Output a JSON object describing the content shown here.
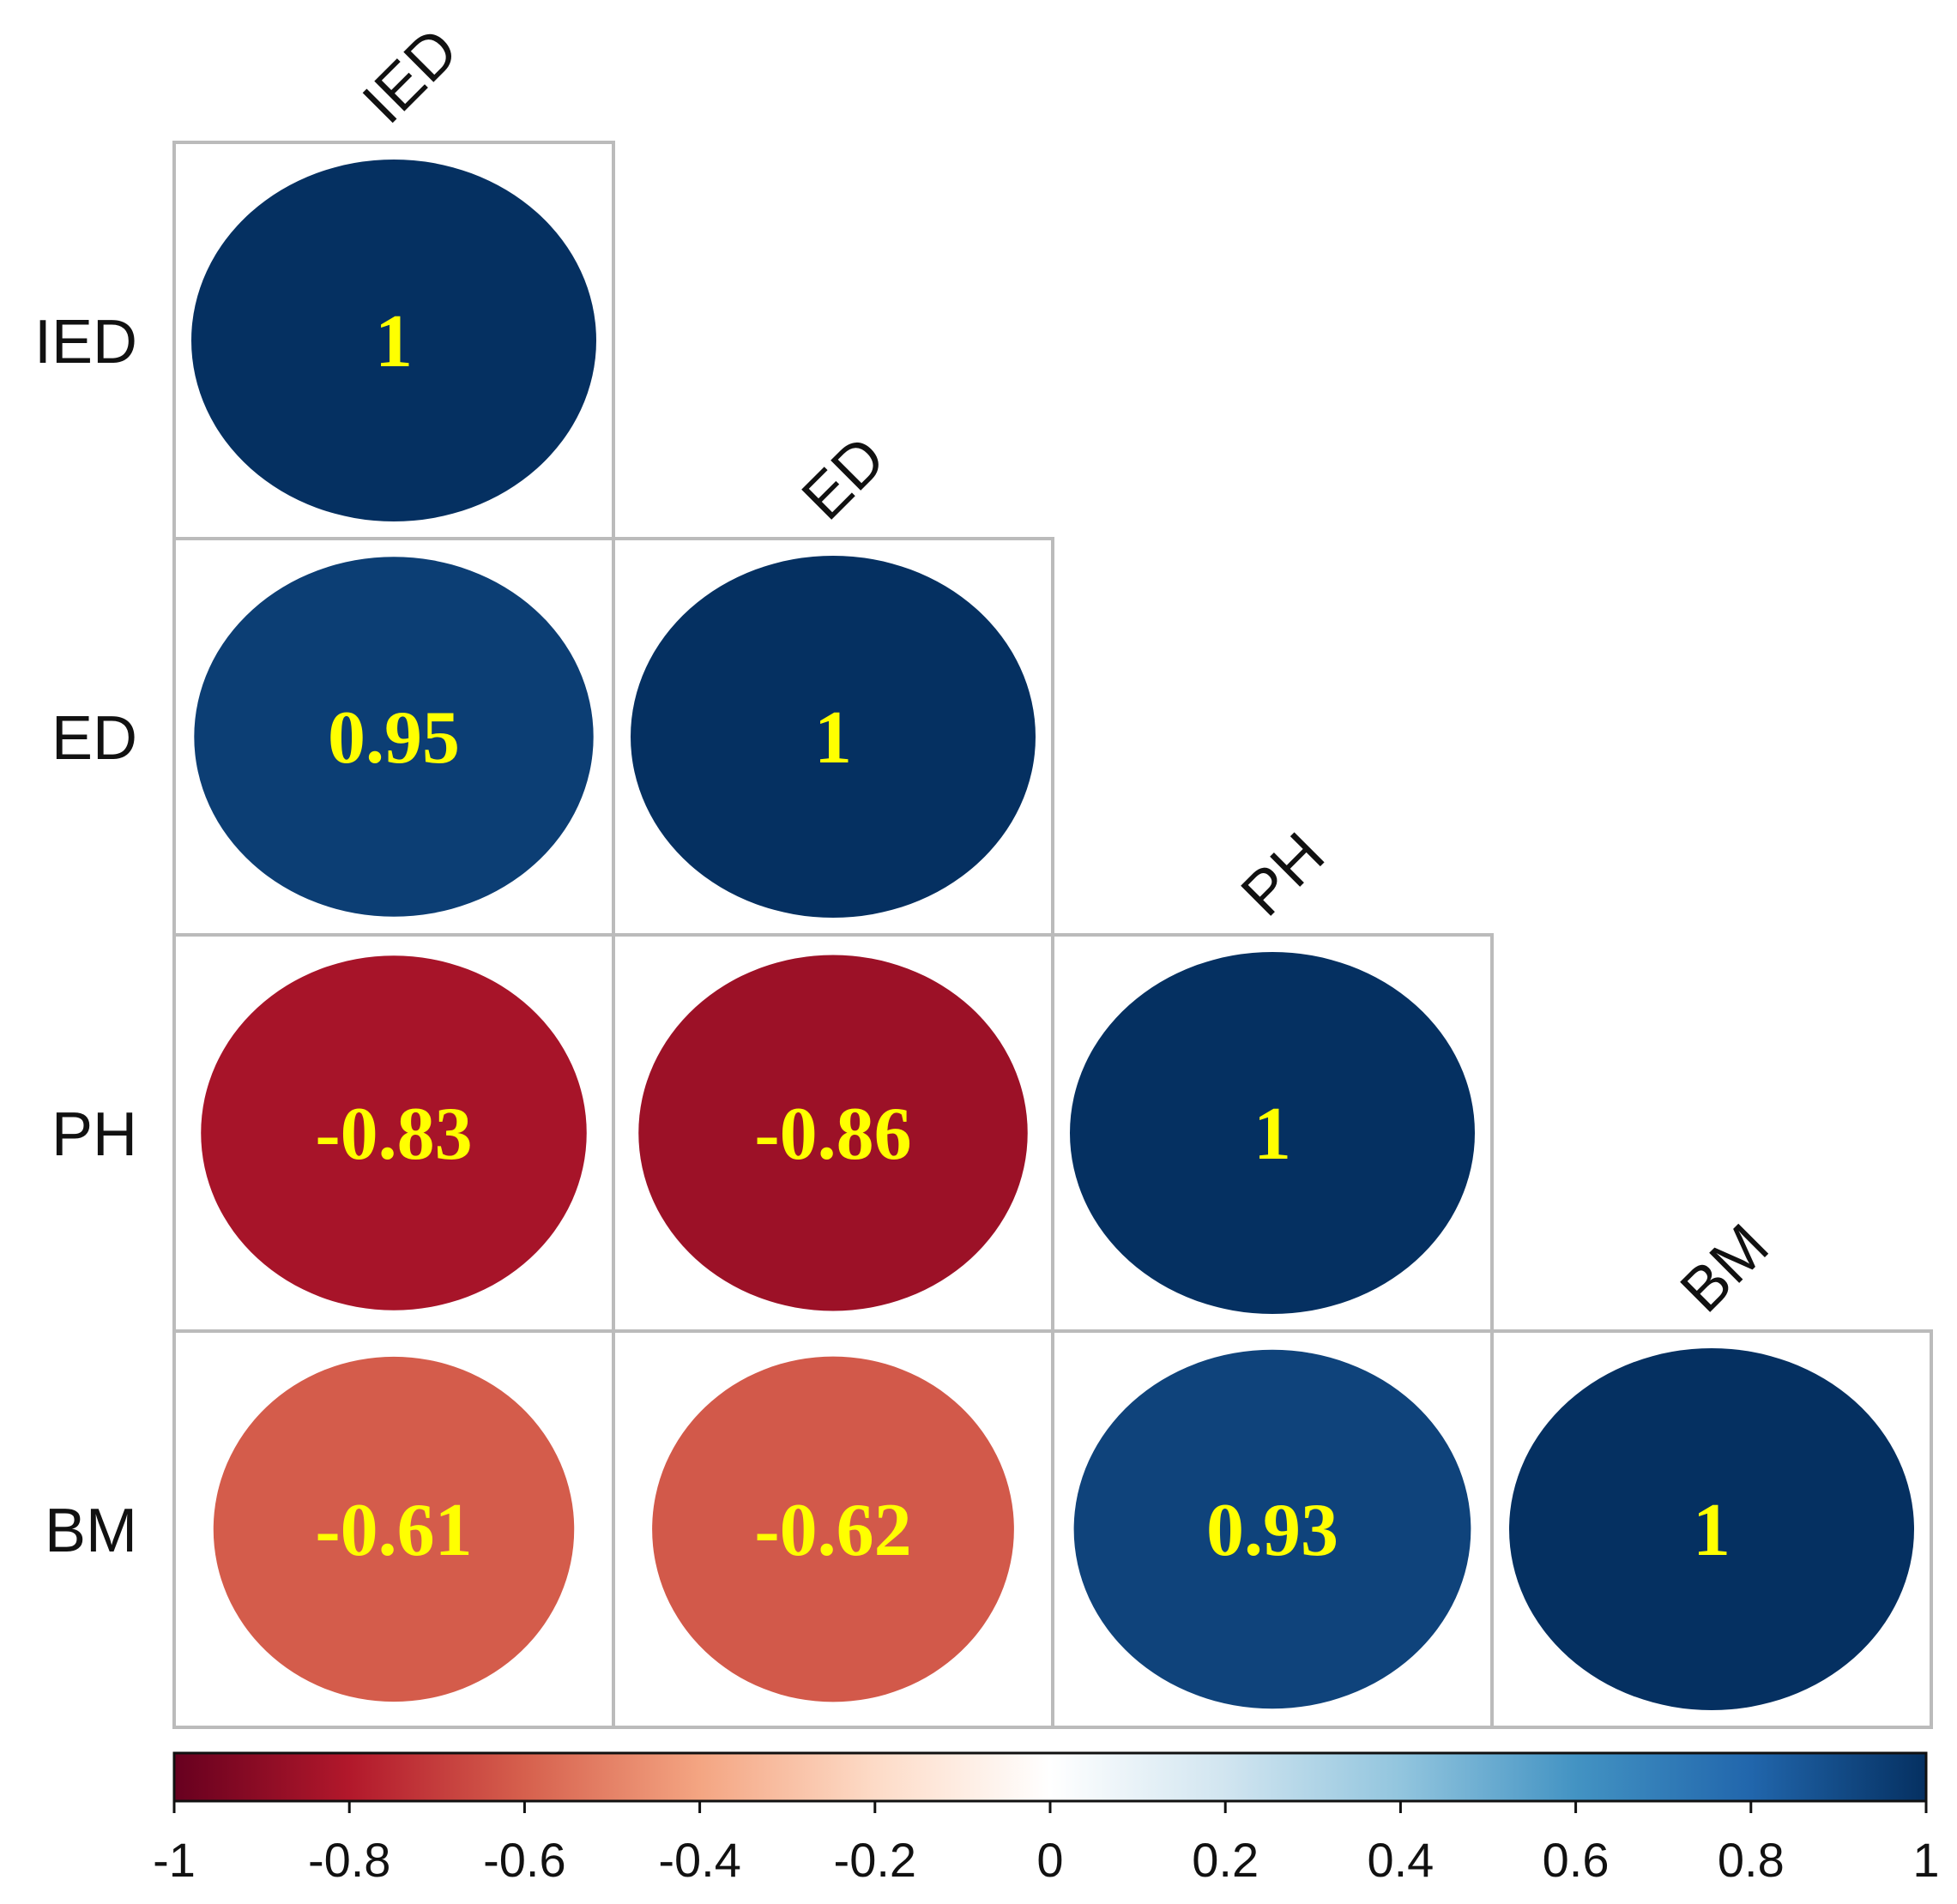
{
  "chart_data": {
    "type": "heatmap",
    "title": "",
    "variables": [
      "IED",
      "ED",
      "PH",
      "BM"
    ],
    "matrix": [
      [
        1,
        null,
        null,
        null
      ],
      [
        0.95,
        1,
        null,
        null
      ],
      [
        -0.83,
        -0.86,
        1,
        null
      ],
      [
        -0.61,
        -0.62,
        0.93,
        1
      ]
    ],
    "value_labels": [
      [
        "1",
        "",
        "",
        ""
      ],
      [
        "0.95",
        "1",
        "",
        ""
      ],
      [
        "-0.83",
        "-0.86",
        "1",
        ""
      ],
      [
        "-0.61",
        "-0.62",
        "0.93",
        "1"
      ]
    ],
    "colorbar": {
      "range": [
        -1,
        1
      ],
      "ticks": [
        -1,
        -0.8,
        -0.6,
        -0.4,
        -0.2,
        0,
        0.2,
        0.4,
        0.6,
        0.8,
        1
      ],
      "tick_labels": [
        "-1",
        "-0.8",
        "-0.6",
        "-0.4",
        "-0.2",
        "0",
        "0.2",
        "0.4",
        "0.6",
        "0.8",
        "1"
      ],
      "colors": [
        "#67001f",
        "#b2182b",
        "#d6604d",
        "#f4a582",
        "#fddbc7",
        "#ffffff",
        "#d1e5f0",
        "#92c5de",
        "#4393c3",
        "#2166ac",
        "#053061"
      ],
      "placement": "bottom"
    },
    "legend": "colorbar-bottom",
    "value_label_color": "#ffff00",
    "grid_color": "#bbbbbb"
  }
}
